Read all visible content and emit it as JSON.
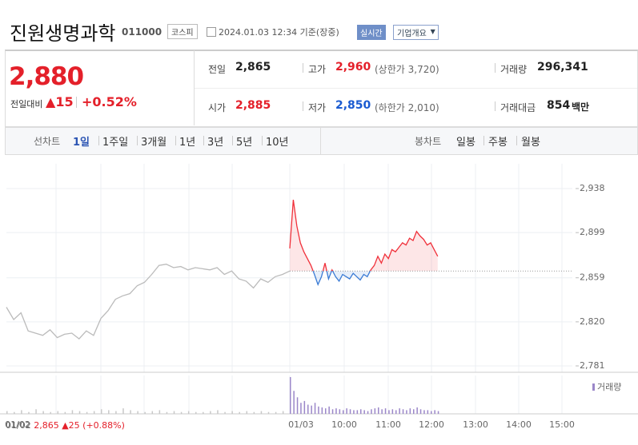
{
  "header": {
    "title": "진원생명과학",
    "code": "011000",
    "market": "코스피",
    "time": "2024.01.03 12:34 기준(장중)",
    "realtime": "실시간",
    "company": "기업개요"
  },
  "quote": {
    "price": "2,880",
    "change_label": "전일대비",
    "change": "15",
    "change_pct": "+0.52%",
    "items": [
      {
        "label": "전일",
        "value": "2,865"
      },
      {
        "label": "고가",
        "value": "2,960",
        "extra": "(상한가 3,720)"
      },
      {
        "label": "거래량",
        "value": "296,341"
      },
      {
        "label": "시가",
        "value": "2,885"
      },
      {
        "label": "저가",
        "value": "2,850",
        "extra": "(하한가 2,010)"
      },
      {
        "label": "거래대금",
        "value": "854",
        "unit": "백만"
      }
    ]
  },
  "tabs": {
    "line_label": "선차트",
    "line_periods": [
      "1일",
      "1주일",
      "3개월",
      "1년",
      "3년",
      "5년",
      "10년"
    ],
    "candle_label": "봉차트",
    "candle_periods": [
      "일봉",
      "주봉",
      "월봉"
    ]
  },
  "chart_data": {
    "type": "line",
    "yticks": [
      {
        "value": 2938,
        "label": "2,938"
      },
      {
        "value": 2899,
        "label": "2,899"
      },
      {
        "value": 2859,
        "label": "2,859"
      },
      {
        "value": 2820,
        "label": "2,820"
      },
      {
        "value": 2781,
        "label": "2,781"
      }
    ],
    "ylim": [
      2776,
      2962
    ],
    "baseline": 2865,
    "x_labels": [
      "01/02",
      "01/03",
      "10:00",
      "11:00",
      "12:00",
      "13:00",
      "14:00",
      "15:00"
    ],
    "series": [
      {
        "color": "#bbbbbb",
        "values": [
          2833,
          2822,
          2828,
          2812,
          2810,
          2808,
          2813,
          2806,
          2809,
          2810,
          2805,
          2812,
          2808,
          2823,
          2830,
          2840,
          2843,
          2845,
          2852,
          2855,
          2862,
          2870,
          2871,
          2868,
          2869,
          2866,
          2868,
          2867,
          2866,
          2868,
          2862,
          2865,
          2858,
          2856,
          2850,
          2858,
          2855,
          2860,
          2862,
          2865
        ]
      },
      {
        "color": "#f0303a",
        "color_down": "#3a7bd5",
        "values": [
          2885,
          2928,
          2905,
          2890,
          2882,
          2876,
          2870,
          2862,
          2853,
          2860,
          2872,
          2858,
          2866,
          2860,
          2856,
          2862,
          2860,
          2858,
          2863,
          2860,
          2857,
          2862,
          2860,
          2866,
          2870,
          2878,
          2872,
          2880,
          2876,
          2884,
          2882,
          2886,
          2890,
          2888,
          2894,
          2892,
          2900,
          2896,
          2893,
          2888,
          2890,
          2884,
          2878
        ]
      }
    ],
    "volume_label": "거래량",
    "volume": [
      {
        "color": "#c8c8c8",
        "values": [
          3,
          2,
          4,
          2,
          5,
          3,
          2,
          3,
          2,
          4,
          3,
          2,
          3,
          5,
          4,
          3,
          6,
          4,
          3,
          2,
          3,
          4,
          2,
          3,
          2,
          3,
          2,
          2,
          3,
          4,
          2,
          3,
          2,
          3,
          2,
          3,
          2,
          2,
          3,
          4
        ]
      },
      {
        "color": "#9b87c9",
        "values": [
          40,
          25,
          18,
          12,
          14,
          10,
          9,
          12,
          8,
          7,
          6,
          8,
          5,
          6,
          5,
          4,
          6,
          5,
          4,
          4,
          5,
          4,
          3,
          5,
          6,
          7,
          5,
          6,
          4,
          5,
          4,
          6,
          5,
          4,
          6,
          5,
          7,
          5,
          4,
          4,
          3,
          4,
          3
        ]
      }
    ],
    "footer": {
      "date": "01/02",
      "price": "2,865",
      "change": "25",
      "pct": "(+0.88%)"
    }
  }
}
